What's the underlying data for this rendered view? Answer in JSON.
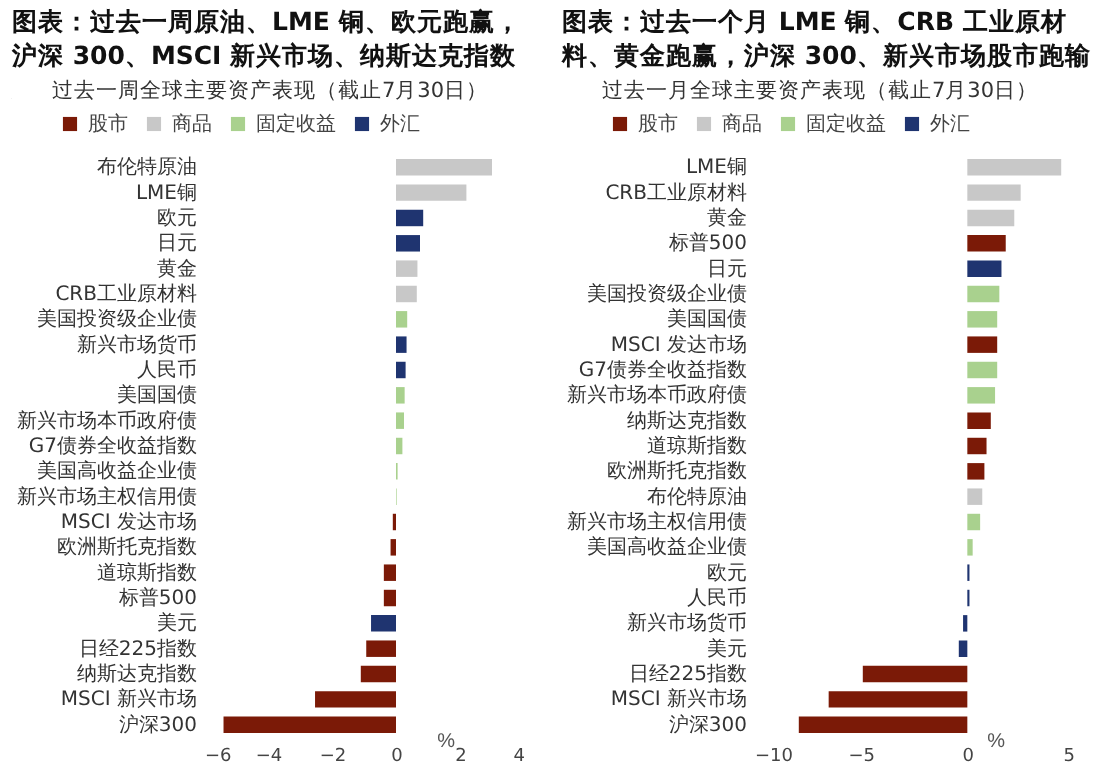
{
  "chart_data": [
    {
      "type": "bar",
      "orientation": "horizontal",
      "title": "图表：过去一周原油、LME 铜、欧元跑赢，沪深 300、MSCI 新兴市场、纳斯达克指数跑输",
      "subtitle": "过去一周全球主要资产表现（截止7月30日）",
      "xlabel": "%",
      "categories": [
        "布伦特原油",
        "LME铜",
        "欧元",
        "日元",
        "黄金",
        "CRB工业原材料",
        "美国投资级企业债",
        "新兴市场货币",
        "人民币",
        "美国国债",
        "新兴市场本币政府债",
        "G7债券全收益指数",
        "美国高收益企业债",
        "新兴市场主权信用债",
        "MSCI 发达市场",
        "欧洲斯托克指数",
        "道琼斯指数",
        "标普500",
        "美元",
        "日经225指数",
        "纳斯达克指数",
        "MSCI 新兴市场",
        "沪深300"
      ],
      "series": [
        {
          "name": "股市",
          "color": "#7b1a07",
          "values": [
            null,
            null,
            null,
            null,
            null,
            null,
            null,
            null,
            null,
            null,
            null,
            null,
            null,
            null,
            -0.1,
            -0.17,
            -0.38,
            -0.38,
            null,
            -0.93,
            -1.1,
            -2.53,
            -5.39
          ]
        },
        {
          "name": "商品",
          "color": "#c8c8c8",
          "values": [
            3.0,
            2.2,
            null,
            null,
            0.67,
            0.65,
            null,
            null,
            null,
            null,
            null,
            null,
            null,
            null,
            null,
            null,
            null,
            null,
            null,
            null,
            null,
            null,
            null
          ]
        },
        {
          "name": "固定收益",
          "color": "#a9d18e",
          "values": [
            null,
            null,
            null,
            null,
            null,
            null,
            0.35,
            null,
            null,
            0.27,
            0.25,
            0.2,
            0.05,
            0.02,
            null,
            null,
            null,
            null,
            null,
            null,
            null,
            null,
            null
          ]
        },
        {
          "name": "外汇",
          "color": "#1f3470",
          "values": [
            null,
            null,
            0.85,
            0.75,
            null,
            null,
            null,
            0.33,
            0.3,
            null,
            null,
            null,
            null,
            null,
            null,
            null,
            null,
            null,
            -0.78,
            null,
            null,
            null,
            null
          ]
        }
      ],
      "xlim": [
        -6,
        4
      ],
      "xticks": [
        -6,
        -4,
        -2,
        0,
        2,
        4
      ],
      "legend": "top"
    },
    {
      "type": "bar",
      "orientation": "horizontal",
      "title": "图表：过去一个月 LME 铜、CRB 工业原材料、黄金跑赢，沪深 300、新兴市场股市跑输",
      "subtitle": "过去一月全球主要资产表现（截止7月30日）",
      "xlabel": "%",
      "categories": [
        "LME铜",
        "CRB工业原材料",
        "黄金",
        "标普500",
        "日元",
        "美国投资级企业债",
        "美国国债",
        "MSCI 发达市场",
        "G7债券全收益指数",
        "新兴市场本币政府债",
        "纳斯达克指数",
        "道琼斯指数",
        "欧洲斯托克指数",
        "布伦特原油",
        "新兴市场主权信用债",
        "美国高收益企业债",
        "欧元",
        "人民币",
        "新兴市场货币",
        "美元",
        "日经225指数",
        "MSCI 新兴市场",
        "沪深300"
      ],
      "series": [
        {
          "name": "股市",
          "color": "#7b1a07",
          "values": [
            null,
            null,
            null,
            1.8,
            null,
            null,
            null,
            1.4,
            null,
            null,
            1.1,
            0.9,
            0.8,
            null,
            null,
            null,
            null,
            null,
            null,
            null,
            -4.9,
            -6.5,
            -7.9
          ]
        },
        {
          "name": "商品",
          "color": "#c8c8c8",
          "values": [
            4.4,
            2.5,
            2.2,
            null,
            null,
            null,
            null,
            null,
            null,
            null,
            null,
            null,
            null,
            0.7,
            null,
            null,
            null,
            null,
            null,
            null,
            null,
            null,
            null
          ]
        },
        {
          "name": "固定收益",
          "color": "#a9d18e",
          "values": [
            null,
            null,
            null,
            null,
            null,
            1.5,
            1.4,
            null,
            1.4,
            1.3,
            null,
            null,
            null,
            null,
            0.6,
            0.25,
            null,
            null,
            null,
            null,
            null,
            null,
            null
          ]
        },
        {
          "name": "外汇",
          "color": "#1f3470",
          "values": [
            null,
            null,
            null,
            null,
            1.6,
            null,
            null,
            null,
            null,
            null,
            null,
            null,
            null,
            null,
            null,
            null,
            0.1,
            0.1,
            -0.2,
            -0.4,
            null,
            null,
            null
          ]
        }
      ],
      "xlim": [
        -10,
        5
      ],
      "xticks": [
        -10,
        -5,
        0,
        5
      ],
      "legend": "top"
    }
  ]
}
